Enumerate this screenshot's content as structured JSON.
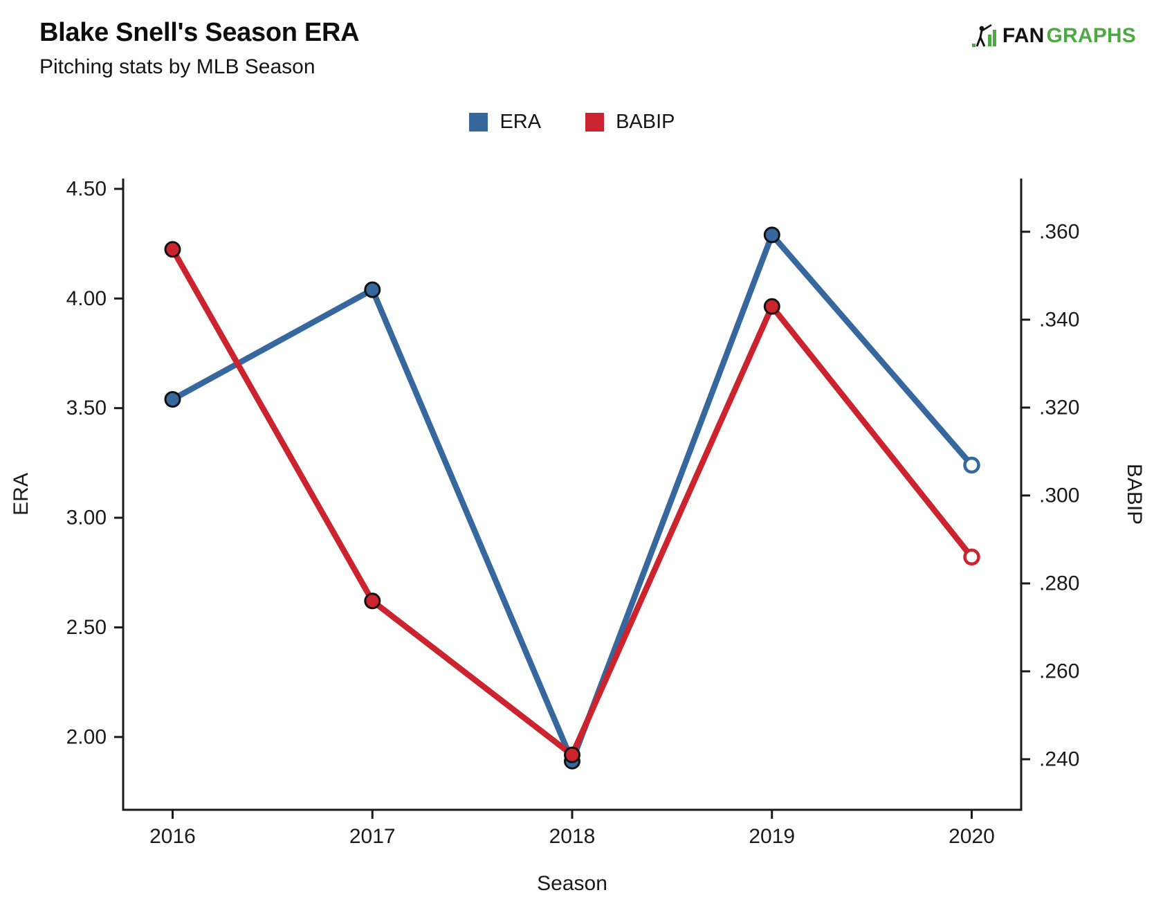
{
  "header": {
    "title": "Blake Snell's Season ERA",
    "subtitle": "Pitching stats by MLB Season"
  },
  "logo": {
    "prefix": "FAN",
    "suffix": "GRAPHS",
    "prefix_color": "#111111",
    "suffix_color": "#4DAA43",
    "brand_green": "#4DAA43",
    "icon": "fangraphs-batter-icon"
  },
  "legend": [
    {
      "label": "ERA",
      "color": "#36689E"
    },
    {
      "label": "BABIP",
      "color": "#CB242F"
    }
  ],
  "chart_data": {
    "type": "line",
    "categories": [
      "2016",
      "2017",
      "2018",
      "2019",
      "2020"
    ],
    "series": [
      {
        "name": "ERA",
        "axis": "left",
        "color": "#36689E",
        "values": [
          3.54,
          4.04,
          1.89,
          4.29,
          3.24
        ],
        "open_point_index": 4
      },
      {
        "name": "BABIP",
        "axis": "right",
        "color": "#CB242F",
        "values": [
          0.356,
          0.276,
          0.241,
          0.343,
          0.286
        ],
        "open_point_index": 4
      }
    ],
    "xlabel": "Season",
    "left_axis": {
      "label": "ERA",
      "range": [
        1.668,
        4.547
      ],
      "ticks": [
        {
          "value": 4.5,
          "label": "4.50"
        },
        {
          "value": 4.0,
          "label": "4.00"
        },
        {
          "value": 3.5,
          "label": "3.50"
        },
        {
          "value": 3.0,
          "label": "3.00"
        },
        {
          "value": 2.5,
          "label": "2.50"
        },
        {
          "value": 2.0,
          "label": "2.00"
        }
      ]
    },
    "right_axis": {
      "label": "BABIP",
      "range": [
        0.2285,
        0.3721
      ],
      "ticks": [
        {
          "value": 0.36,
          "label": ".360"
        },
        {
          "value": 0.34,
          "label": ".340"
        },
        {
          "value": 0.32,
          "label": ".320"
        },
        {
          "value": 0.3,
          "label": ".300"
        },
        {
          "value": 0.28,
          "label": ".280"
        },
        {
          "value": 0.26,
          "label": ".260"
        },
        {
          "value": 0.24,
          "label": ".240"
        }
      ]
    },
    "grid": false,
    "legend_position": "top-center",
    "axis_color": "#1a1a1a",
    "marker_ring_color": "#111111"
  }
}
